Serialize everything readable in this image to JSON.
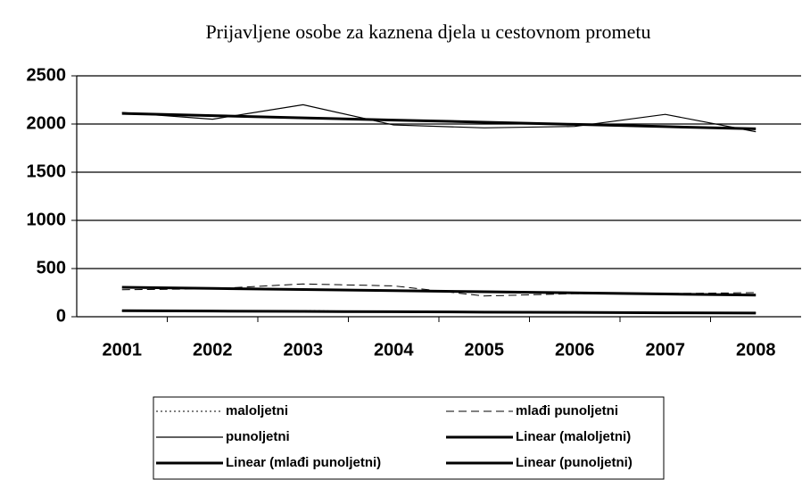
{
  "chart_data": {
    "type": "line",
    "title": "Prijavljene osobe za kaznena djela u cestovnom prometu",
    "categories": [
      "2001",
      "2002",
      "2003",
      "2004",
      "2005",
      "2006",
      "2007",
      "2008"
    ],
    "ylim": [
      0,
      2500
    ],
    "yticks": [
      0,
      500,
      1000,
      1500,
      2000,
      2500
    ],
    "grid": true,
    "series": [
      {
        "name": "maloljetni",
        "color": "#000000",
        "dash": "dotted",
        "width": 1,
        "values": [
          60,
          60,
          65,
          50,
          45,
          40,
          45,
          40
        ]
      },
      {
        "name": "mlađi punoljetni",
        "color": "#000000",
        "dash": "dashed",
        "width": 1,
        "values": [
          280,
          290,
          340,
          320,
          215,
          240,
          240,
          250
        ]
      },
      {
        "name": "punoljetni",
        "color": "#000000",
        "dash": "solid",
        "width": 1.2,
        "values": [
          2120,
          2050,
          2200,
          1990,
          1960,
          1975,
          2100,
          1920
        ]
      },
      {
        "name": "Linear (maloljetni)",
        "color": "#000000",
        "dash": "solid",
        "width": 3,
        "values": [
          62,
          59,
          55,
          52,
          48,
          45,
          41,
          38
        ]
      },
      {
        "name": "Linear (mlađi punoljetni)",
        "color": "#000000",
        "dash": "solid",
        "width": 3,
        "values": [
          305,
          294,
          282,
          271,
          259,
          248,
          236,
          225
        ]
      },
      {
        "name": "Linear (punoljetni)",
        "color": "#000000",
        "dash": "solid",
        "width": 3,
        "values": [
          2110,
          2087,
          2064,
          2041,
          2019,
          1996,
          1973,
          1950
        ]
      }
    ]
  }
}
